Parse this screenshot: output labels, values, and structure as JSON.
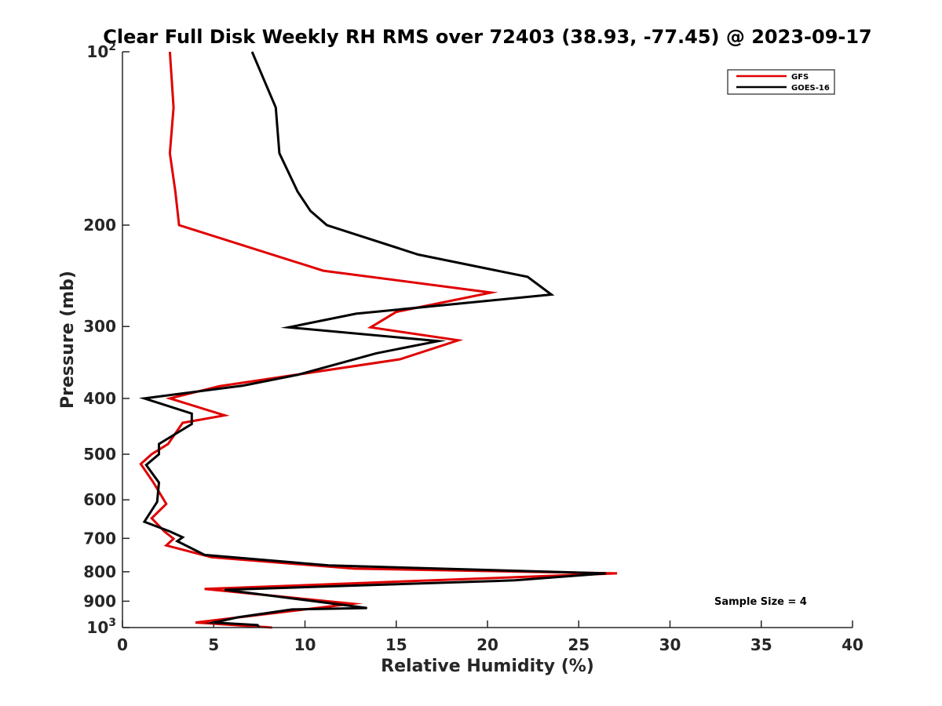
{
  "chart_data": {
    "type": "line",
    "title": "Clear Full Disk Weekly RH RMS over 72403 (38.93, -77.45) @ 2023-09-17",
    "xlabel": "Relative Humidity (%)",
    "ylabel": "Pressure (mb)",
    "xlim": [
      0,
      40
    ],
    "ylim": [
      100,
      1000
    ],
    "y_scale": "log",
    "y_reversed": true,
    "x_ticks": [
      0,
      5,
      10,
      15,
      20,
      25,
      30,
      35,
      40
    ],
    "x_tick_labels": [
      "0",
      "5",
      "10",
      "15",
      "20",
      "25",
      "30",
      "35",
      "40"
    ],
    "y_ticks": [
      100,
      200,
      300,
      400,
      500,
      600,
      700,
      800,
      900,
      1000
    ],
    "y_tick_labels": [
      "10^2",
      "200",
      "300",
      "400",
      "500",
      "600",
      "700",
      "800",
      "900",
      "10^3"
    ],
    "y_tick_label_parts": {
      "100": {
        "base": "10",
        "exp": "2"
      },
      "1000": {
        "base": "10",
        "exp": "3"
      }
    },
    "grid": false,
    "legend_position": "top-right",
    "annotation": "Sample Size = 4",
    "series": [
      {
        "name": "GFS",
        "color": "#e00000",
        "points": [
          [
            2.6,
            100
          ],
          [
            2.8,
            125
          ],
          [
            2.6,
            150
          ],
          [
            2.9,
            175
          ],
          [
            3.1,
            200
          ],
          [
            11.0,
            240
          ],
          [
            20.2,
            262
          ],
          [
            15.0,
            283
          ],
          [
            13.6,
            301
          ],
          [
            18.4,
            317
          ],
          [
            15.2,
            342
          ],
          [
            5.3,
            381
          ],
          [
            2.6,
            400
          ],
          [
            5.6,
            428
          ],
          [
            3.3,
            441
          ],
          [
            2.5,
            480
          ],
          [
            1.6,
            500
          ],
          [
            1.0,
            520
          ],
          [
            1.7,
            560
          ],
          [
            2.4,
            610
          ],
          [
            1.6,
            646
          ],
          [
            2.3,
            681
          ],
          [
            2.8,
            701
          ],
          [
            2.4,
            720
          ],
          [
            4.9,
            755
          ],
          [
            12.7,
            790
          ],
          [
            27.1,
            805
          ],
          [
            4.5,
            857
          ],
          [
            12.6,
            909
          ],
          [
            4.0,
            980
          ],
          [
            8.2,
            1000
          ]
        ]
      },
      {
        "name": "GOES-16",
        "color": "#000000",
        "points": [
          [
            7.1,
            100
          ],
          [
            8.4,
            125
          ],
          [
            8.6,
            150
          ],
          [
            9.6,
            175
          ],
          [
            10.3,
            189
          ],
          [
            11.2,
            200
          ],
          [
            16.2,
            225
          ],
          [
            22.2,
            246
          ],
          [
            23.5,
            264
          ],
          [
            12.8,
            285
          ],
          [
            9.1,
            301
          ],
          [
            17.3,
            318
          ],
          [
            13.9,
            334
          ],
          [
            9.6,
            364
          ],
          [
            6.6,
            380
          ],
          [
            1.2,
            400
          ],
          [
            3.8,
            425
          ],
          [
            3.8,
            443
          ],
          [
            2.0,
            480
          ],
          [
            2.0,
            500
          ],
          [
            1.3,
            522
          ],
          [
            2.0,
            560
          ],
          [
            1.9,
            605
          ],
          [
            1.2,
            655
          ],
          [
            2.6,
            681
          ],
          [
            3.3,
            697
          ],
          [
            3.0,
            708
          ],
          [
            4.5,
            748
          ],
          [
            11.3,
            780
          ],
          [
            26.5,
            805
          ],
          [
            21.5,
            828
          ],
          [
            5.6,
            860
          ],
          [
            12.3,
            915
          ],
          [
            13.4,
            925
          ],
          [
            9.3,
            930
          ],
          [
            6.3,
            960
          ],
          [
            5.0,
            980
          ],
          [
            7.4,
            990
          ],
          [
            7.5,
            1000
          ]
        ]
      }
    ]
  }
}
